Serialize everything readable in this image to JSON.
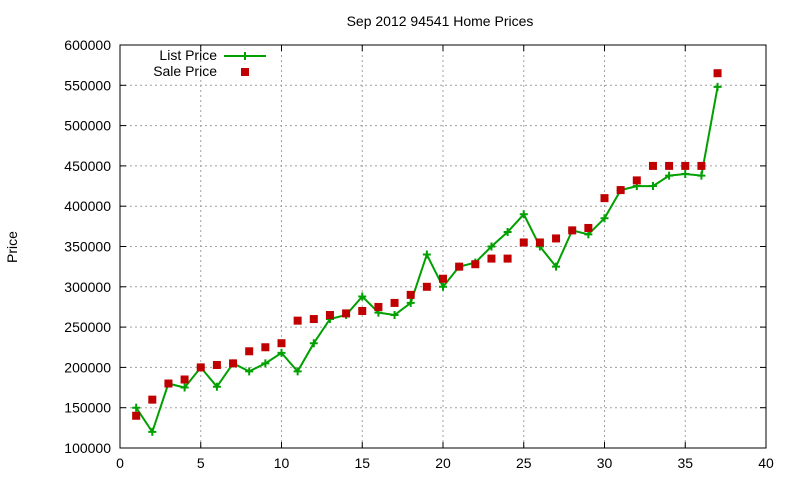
{
  "chart_data": {
    "type": "line",
    "title": "Sep 2012 94541 Home Prices",
    "xlabel": "",
    "ylabel": "Price",
    "xlim": [
      0,
      40
    ],
    "ylim": [
      100000,
      600000
    ],
    "xticks": [
      0,
      5,
      10,
      15,
      20,
      25,
      30,
      35,
      40
    ],
    "yticks": [
      100000,
      150000,
      200000,
      250000,
      300000,
      350000,
      400000,
      450000,
      500000,
      550000,
      600000
    ],
    "grid": true,
    "legend_position": "top-left",
    "series": [
      {
        "name": "List Price",
        "style": "line-plus",
        "color": "#00a000",
        "x": [
          1,
          2,
          3,
          4,
          5,
          6,
          7,
          8,
          9,
          10,
          11,
          12,
          13,
          14,
          15,
          16,
          17,
          18,
          19,
          20,
          21,
          22,
          23,
          24,
          25,
          26,
          27,
          28,
          29,
          30,
          31,
          32,
          33,
          34,
          35,
          36,
          37
        ],
        "y": [
          150000,
          120000,
          180000,
          175000,
          200000,
          176000,
          205000,
          195000,
          205000,
          218000,
          195000,
          230000,
          260000,
          265000,
          288000,
          268000,
          265000,
          280000,
          340000,
          300000,
          325000,
          330000,
          350000,
          368000,
          390000,
          350000,
          325000,
          370000,
          365000,
          385000,
          420000,
          425000,
          425000,
          438000,
          440000,
          438000,
          548000
        ]
      },
      {
        "name": "Sale Price",
        "style": "square",
        "color": "#c00000",
        "x": [
          1,
          2,
          3,
          4,
          5,
          6,
          7,
          8,
          9,
          10,
          11,
          12,
          13,
          14,
          15,
          16,
          17,
          18,
          19,
          20,
          21,
          22,
          23,
          24,
          25,
          26,
          27,
          28,
          29,
          30,
          31,
          32,
          33,
          34,
          35,
          36,
          37
        ],
        "y": [
          140000,
          160000,
          180000,
          185000,
          200000,
          203000,
          205000,
          220000,
          225000,
          230000,
          258000,
          260000,
          265000,
          267000,
          270000,
          275000,
          280000,
          290000,
          300000,
          310000,
          325000,
          328000,
          335000,
          335000,
          355000,
          355000,
          360000,
          370000,
          373000,
          410000,
          420000,
          432000,
          450000,
          450000,
          450000,
          450000,
          565000
        ]
      }
    ]
  }
}
